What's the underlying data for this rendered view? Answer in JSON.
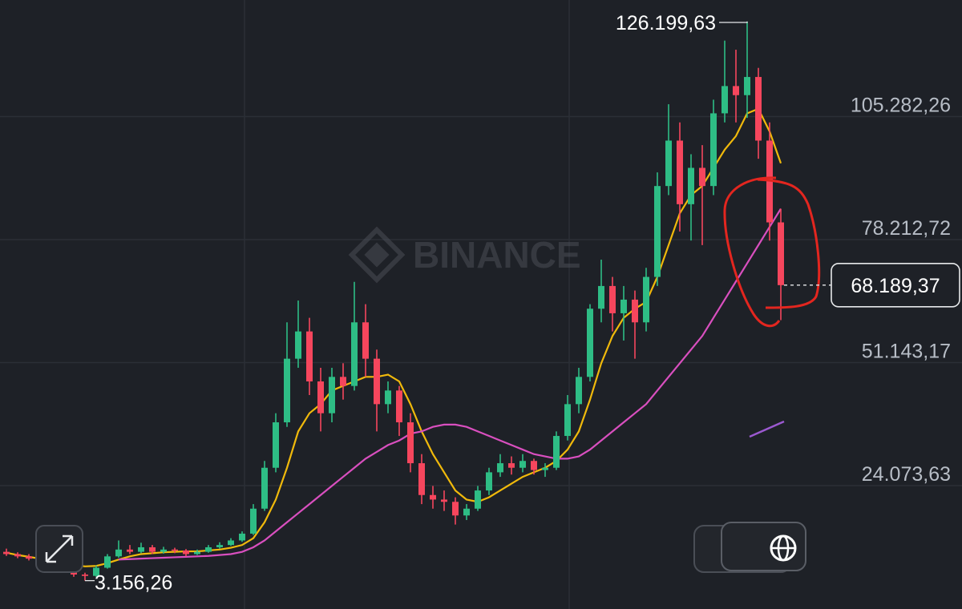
{
  "chart_data": {
    "type": "candlestick",
    "ylim": [
      -3084,
      130940
    ],
    "yticks": [
      {
        "value": 24073.63,
        "label": "24.073,63"
      },
      {
        "value": 51143.17,
        "label": "51.143,17"
      },
      {
        "value": 78212.72,
        "label": "78.212,72"
      },
      {
        "value": 105282.26,
        "label": "105.282,26"
      }
    ],
    "grid": true,
    "watermark": "BINANCE",
    "up_color": "#2ebd85",
    "down_color": "#f6465d",
    "open": [
      9500,
      9000,
      8500,
      8000,
      7500,
      6500,
      5500,
      4500,
      4200,
      6000,
      8500,
      10000,
      9500,
      10500,
      9500,
      10000,
      9800,
      9000,
      9500,
      10500,
      11000,
      12000,
      13500,
      19000,
      28000,
      38000,
      52000,
      58000,
      47000,
      40000,
      48000,
      46000,
      60000,
      52000,
      42000,
      45000,
      38000,
      29000,
      22000,
      21000,
      20500,
      17500,
      19000,
      23000,
      27000,
      29000,
      28000,
      29500,
      27500,
      28000,
      35000,
      42000,
      48000,
      63000,
      68000,
      62000,
      65000,
      60000,
      70000,
      90000,
      100000,
      86000,
      94000,
      90000,
      106000,
      112000,
      110000,
      114000,
      100000,
      82000
    ],
    "high": [
      10200,
      9400,
      9000,
      8400,
      7900,
      6900,
      5800,
      4900,
      6500,
      9000,
      12000,
      11000,
      11500,
      11000,
      10600,
      10400,
      10100,
      10000,
      11000,
      11600,
      12500,
      14000,
      20000,
      29500,
      40000,
      60000,
      64800,
      61000,
      50000,
      50000,
      51000,
      68900,
      64000,
      54000,
      47000,
      46000,
      40000,
      31000,
      24000,
      23000,
      21500,
      20000,
      24000,
      28000,
      31000,
      30500,
      31000,
      30000,
      29000,
      36000,
      44000,
      50000,
      64000,
      73800,
      70000,
      68000,
      67000,
      72000,
      93000,
      108000,
      104000,
      97000,
      99000,
      109000,
      122000,
      120000,
      126199.63,
      116000,
      104000,
      85000
    ],
    "low": [
      8600,
      8100,
      7600,
      7000,
      6000,
      5000,
      4000,
      3156.26,
      4000,
      5800,
      8200,
      9000,
      9200,
      9000,
      9100,
      9200,
      8500,
      8800,
      9300,
      10200,
      10800,
      11700,
      13200,
      18500,
      27000,
      37000,
      50000,
      44000,
      36000,
      38000,
      43000,
      45000,
      48000,
      36000,
      40000,
      35000,
      27000,
      20000,
      19000,
      18500,
      15500,
      16500,
      18500,
      22000,
      26000,
      26500,
      27000,
      26500,
      26000,
      27500,
      34000,
      40000,
      47000,
      60000,
      58000,
      56000,
      52000,
      58000,
      68000,
      88000,
      80000,
      78000,
      77000,
      88000,
      104000,
      104000,
      105000,
      96000,
      78000,
      60500
    ],
    "close": [
      9000,
      8500,
      8000,
      7500,
      6500,
      5500,
      4500,
      4200,
      6000,
      8500,
      10000,
      9500,
      10500,
      9500,
      10000,
      9800,
      9000,
      9500,
      10500,
      11000,
      12000,
      13500,
      19000,
      28000,
      38000,
      52000,
      58000,
      47000,
      40000,
      48000,
      46000,
      60000,
      52000,
      42000,
      45000,
      38000,
      29000,
      22000,
      21000,
      20500,
      17500,
      19000,
      23000,
      27000,
      29000,
      28000,
      29500,
      27500,
      28000,
      35000,
      42000,
      48000,
      63000,
      68000,
      62000,
      65000,
      60000,
      70000,
      90000,
      100000,
      86000,
      94000,
      90000,
      106000,
      112000,
      110000,
      114000,
      100000,
      82000,
      68189.37
    ],
    "series": [
      {
        "color": "#f0b90b",
        "values": [
          9300,
          8800,
          8400,
          8000,
          7500,
          7000,
          6600,
          6300,
          6400,
          7000,
          7800,
          8500,
          9000,
          9200,
          9400,
          9500,
          9600,
          9600,
          9800,
          10000,
          10400,
          11000,
          12500,
          16000,
          21000,
          28000,
          36000,
          40000,
          42000,
          45000,
          46000,
          47000,
          48000,
          48000,
          48500,
          47000,
          42000,
          36000,
          31000,
          27000,
          23000,
          21000,
          20500,
          21500,
          23000,
          24500,
          26000,
          27000,
          28000,
          29500,
          32000,
          36000,
          43000,
          51000,
          57000,
          61000,
          63000,
          64500,
          70000,
          77000,
          84000,
          88000,
          90000,
          94000,
          98000,
          101000,
          106000,
          107000,
          102000,
          95000
        ]
      },
      {
        "color": "#d94fbf",
        "values": [
          null,
          null,
          null,
          null,
          null,
          null,
          null,
          null,
          null,
          null,
          7800,
          7900,
          8000,
          8100,
          8200,
          8300,
          8400,
          8500,
          8600,
          8800,
          9000,
          9500,
          10500,
          12000,
          14000,
          16000,
          18000,
          20000,
          22000,
          24000,
          26000,
          28000,
          30000,
          31500,
          33000,
          34000,
          35500,
          36000,
          37000,
          37500,
          37500,
          37000,
          36000,
          35000,
          34000,
          33000,
          32000,
          31000,
          30500,
          30000,
          30000,
          30500,
          32000,
          34000,
          36000,
          38000,
          40000,
          42000,
          45000,
          48000,
          51000,
          54000,
          57000,
          61000,
          65000,
          69000,
          73000,
          77000,
          81000,
          85000
        ]
      }
    ],
    "high_marker": {
      "value": 126199.63,
      "label": "126.199,63"
    },
    "low_marker": {
      "value": 3156.26,
      "label": "3.156,26"
    },
    "last_price": {
      "value": 68189.37,
      "label": "68.189,37"
    }
  }
}
